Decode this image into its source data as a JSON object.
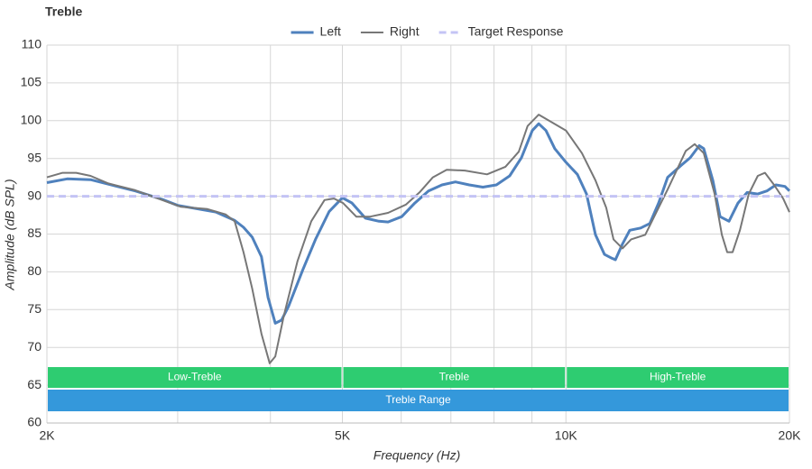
{
  "chart_data": {
    "type": "line",
    "title": "Treble",
    "xlabel": "Frequency (Hz)",
    "ylabel": "Amplitude (dB SPL)",
    "xscale": "log",
    "xlim": [
      2000,
      20000
    ],
    "ylim": [
      60,
      110
    ],
    "xticks": [
      {
        "value": 2000,
        "label": "2K"
      },
      {
        "value": 5000,
        "label": "5K"
      },
      {
        "value": 10000,
        "label": "10K"
      },
      {
        "value": 20000,
        "label": "20K"
      }
    ],
    "xminor": [
      3000,
      4000,
      6000,
      7000,
      8000,
      9000
    ],
    "yticks": [
      60,
      65,
      70,
      75,
      80,
      85,
      90,
      95,
      100,
      105,
      110
    ],
    "grid": true,
    "legend": "top",
    "series": [
      {
        "name": "Left",
        "color": "#4f81bd",
        "width": 3,
        "dash": false,
        "x": [
          2000,
          2130,
          2290,
          2420,
          2630,
          2860,
          3000,
          3380,
          3580,
          3680,
          3780,
          3890,
          3970,
          4060,
          4140,
          4230,
          4420,
          4600,
          4800,
          5000,
          5150,
          5370,
          5600,
          5760,
          6010,
          6260,
          6530,
          6810,
          7100,
          7410,
          7730,
          8060,
          8400,
          8710,
          9010,
          9190,
          9400,
          9660,
          10000,
          10360,
          10660,
          10960,
          11270,
          11530,
          11660,
          11920,
          12190,
          12610,
          12970,
          13330,
          13710,
          14300,
          14700,
          15120,
          15330,
          15770,
          16130,
          16580,
          17050,
          17540,
          18130,
          18650,
          19180,
          19720,
          20000
        ],
        "values": [
          91.8,
          92.3,
          92.2,
          91.6,
          90.7,
          89.6,
          88.8,
          87.9,
          86.8,
          85.9,
          84.6,
          82.0,
          76.6,
          73.2,
          73.6,
          75.4,
          80.2,
          84.3,
          88.0,
          89.8,
          89.1,
          87.1,
          86.7,
          86.6,
          87.3,
          89.1,
          90.7,
          91.5,
          91.9,
          91.5,
          91.2,
          91.5,
          92.7,
          95.1,
          98.7,
          99.6,
          98.7,
          96.3,
          94.5,
          92.9,
          90.3,
          84.9,
          82.3,
          81.8,
          81.6,
          83.7,
          85.5,
          85.8,
          86.4,
          89.1,
          92.5,
          94.1,
          95.1,
          96.7,
          96.3,
          92.1,
          87.3,
          86.7,
          89.1,
          90.5,
          90.3,
          90.7,
          91.5,
          91.3,
          90.7
        ]
      },
      {
        "name": "Right",
        "color": "#777777",
        "width": 2,
        "dash": false,
        "x": [
          2000,
          2100,
          2190,
          2290,
          2420,
          2630,
          2860,
          3030,
          3290,
          3480,
          3580,
          3680,
          3780,
          3890,
          3990,
          4060,
          4170,
          4350,
          4540,
          4730,
          4870,
          5010,
          5220,
          5450,
          5760,
          6090,
          6350,
          6620,
          6910,
          7310,
          7830,
          8290,
          8640,
          8880,
          9190,
          9530,
          10000,
          10510,
          10960,
          11330,
          11590,
          11920,
          12240,
          12790,
          13150,
          13710,
          14500,
          14910,
          15330,
          15860,
          16220,
          16490,
          16770,
          17150,
          17630,
          18130,
          18540,
          19070,
          19610,
          20000
        ],
        "values": [
          92.5,
          93.1,
          93.1,
          92.7,
          91.7,
          90.8,
          89.5,
          88.6,
          88.3,
          87.6,
          86.7,
          82.6,
          77.8,
          71.8,
          67.9,
          68.8,
          74.2,
          81.4,
          86.7,
          89.5,
          89.7,
          89.1,
          87.3,
          87.3,
          87.8,
          88.9,
          90.5,
          92.5,
          93.5,
          93.4,
          92.9,
          93.9,
          95.9,
          99.3,
          100.8,
          99.9,
          98.7,
          95.7,
          92.1,
          88.5,
          84.3,
          83.1,
          84.3,
          84.9,
          87.3,
          90.9,
          96.0,
          96.9,
          95.7,
          90.3,
          84.9,
          82.6,
          82.6,
          85.5,
          90.3,
          92.7,
          93.1,
          91.5,
          89.7,
          87.9
        ]
      },
      {
        "name": "Target Response",
        "color": "#c4c4f5",
        "width": 3,
        "dash": true,
        "x": [
          2000,
          20000
        ],
        "values": [
          90,
          90
        ]
      }
    ],
    "bands": [
      {
        "label": "Low-Treble",
        "from": 2000,
        "to": 5000,
        "color": "#2ecc71"
      },
      {
        "label": "Treble",
        "from": 5000,
        "to": 10000,
        "color": "#2ecc71"
      },
      {
        "label": "High-Treble",
        "from": 10000,
        "to": 20000,
        "color": "#2ecc71"
      }
    ],
    "range_band": {
      "label": "Treble Range",
      "from": 2000,
      "to": 20000,
      "color": "#3498db"
    }
  }
}
